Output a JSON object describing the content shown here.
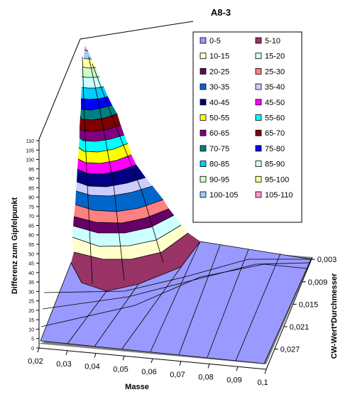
{
  "chart_data": {
    "type": "surface3d",
    "title": "A8-3",
    "xlabel": "Masse",
    "ylabel": "CW-Wert*Durchmesser",
    "zlabel": "Differenz zum Gipfelpunkt",
    "x_ticks": [
      "0,02",
      "0,03",
      "0,04",
      "0,05",
      "0,06",
      "0,07",
      "0,08",
      "0,09",
      "0,1"
    ],
    "y_ticks": [
      "0,003",
      "0,009",
      "0,015",
      "0,021",
      "0,027"
    ],
    "z_ticks": [
      "0",
      "5",
      "10",
      "15",
      "20",
      "25",
      "30",
      "35",
      "40",
      "45",
      "50",
      "55",
      "60",
      "65",
      "70",
      "75",
      "80",
      "85",
      "90",
      "95",
      "100",
      "105",
      "110"
    ],
    "zlim": [
      0,
      110
    ],
    "peak_value": 110,
    "legend_position": "top-right",
    "legend": [
      {
        "label": "0-5",
        "color": "#9999ff"
      },
      {
        "label": "5-10",
        "color": "#993366"
      },
      {
        "label": "10-15",
        "color": "#ffffcc"
      },
      {
        "label": "15-20",
        "color": "#ccffff"
      },
      {
        "label": "20-25",
        "color": "#660066"
      },
      {
        "label": "25-30",
        "color": "#ff8080"
      },
      {
        "label": "30-35",
        "color": "#0066cc"
      },
      {
        "label": "35-40",
        "color": "#ccccff"
      },
      {
        "label": "40-45",
        "color": "#000080"
      },
      {
        "label": "45-50",
        "color": "#ff00ff"
      },
      {
        "label": "50-55",
        "color": "#ffff00"
      },
      {
        "label": "55-60",
        "color": "#00ffff"
      },
      {
        "label": "60-65",
        "color": "#800080"
      },
      {
        "label": "65-70",
        "color": "#800000"
      },
      {
        "label": "70-75",
        "color": "#008080"
      },
      {
        "label": "75-80",
        "color": "#0000ff"
      },
      {
        "label": "80-85",
        "color": "#00ccff"
      },
      {
        "label": "85-90",
        "color": "#ccffff"
      },
      {
        "label": "90-95",
        "color": "#ccffcc"
      },
      {
        "label": "95-100",
        "color": "#ffff99"
      },
      {
        "label": "100-105",
        "color": "#99ccff"
      },
      {
        "label": "105-110",
        "color": "#ff99cc"
      }
    ]
  }
}
